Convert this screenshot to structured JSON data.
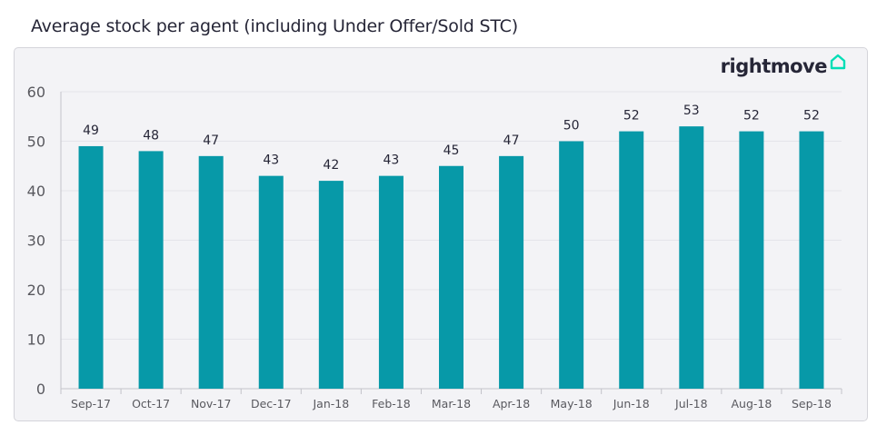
{
  "header": {
    "title": "Average stock per agent (including Under Offer/Sold STC)"
  },
  "brand": {
    "name": "rightmove",
    "logo_icon": "house-outline-icon",
    "accent_color": "#00deb6"
  },
  "chart_data": {
    "type": "bar",
    "title": "Average stock per agent (including Under Offer/Sold STC)",
    "categories": [
      "Sep-17",
      "Oct-17",
      "Nov-17",
      "Dec-17",
      "Jan-18",
      "Feb-18",
      "Mar-18",
      "Apr-18",
      "May-18",
      "Jun-18",
      "Jul-18",
      "Aug-18",
      "Sep-18"
    ],
    "values": [
      49,
      48,
      47,
      43,
      42,
      43,
      45,
      47,
      50,
      52,
      53,
      52,
      52
    ],
    "data_labels": [
      "49",
      "48",
      "47",
      "43",
      "42",
      "43",
      "45",
      "47",
      "50",
      "52",
      "53",
      "52",
      "52"
    ],
    "xlabel": "",
    "ylabel": "",
    "ylim": [
      0,
      60
    ],
    "yticks": [
      "0",
      "10",
      "20",
      "30",
      "40",
      "50",
      "60"
    ],
    "bar_color": "#0799a8",
    "grid": true,
    "legend": "none"
  }
}
